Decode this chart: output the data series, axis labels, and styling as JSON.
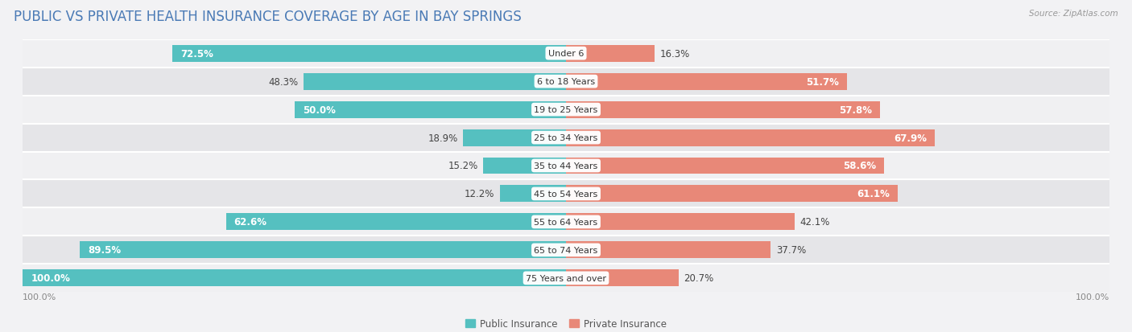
{
  "title": "PUBLIC VS PRIVATE HEALTH INSURANCE COVERAGE BY AGE IN BAY SPRINGS",
  "source": "Source: ZipAtlas.com",
  "categories": [
    "Under 6",
    "6 to 18 Years",
    "19 to 25 Years",
    "25 to 34 Years",
    "35 to 44 Years",
    "45 to 54 Years",
    "55 to 64 Years",
    "65 to 74 Years",
    "75 Years and over"
  ],
  "public_values": [
    72.5,
    48.3,
    50.0,
    18.9,
    15.2,
    12.2,
    62.6,
    89.5,
    100.0
  ],
  "private_values": [
    16.3,
    51.7,
    57.8,
    67.9,
    58.6,
    61.1,
    42.1,
    37.7,
    20.7
  ],
  "public_color": "#55c0c0",
  "private_color": "#e88878",
  "public_label": "Public Insurance",
  "private_label": "Private Insurance",
  "row_bg_colors": [
    "#f0f0f2",
    "#e5e5e8"
  ],
  "separator_color": "#ffffff",
  "axis_label_left": "100.0%",
  "axis_label_right": "100.0%",
  "title_color": "#4a7ab5",
  "title_fontsize": 12,
  "label_fontsize": 8.5,
  "category_fontsize": 8,
  "legend_fontsize": 8.5,
  "source_fontsize": 7.5,
  "max_value": 100.0
}
